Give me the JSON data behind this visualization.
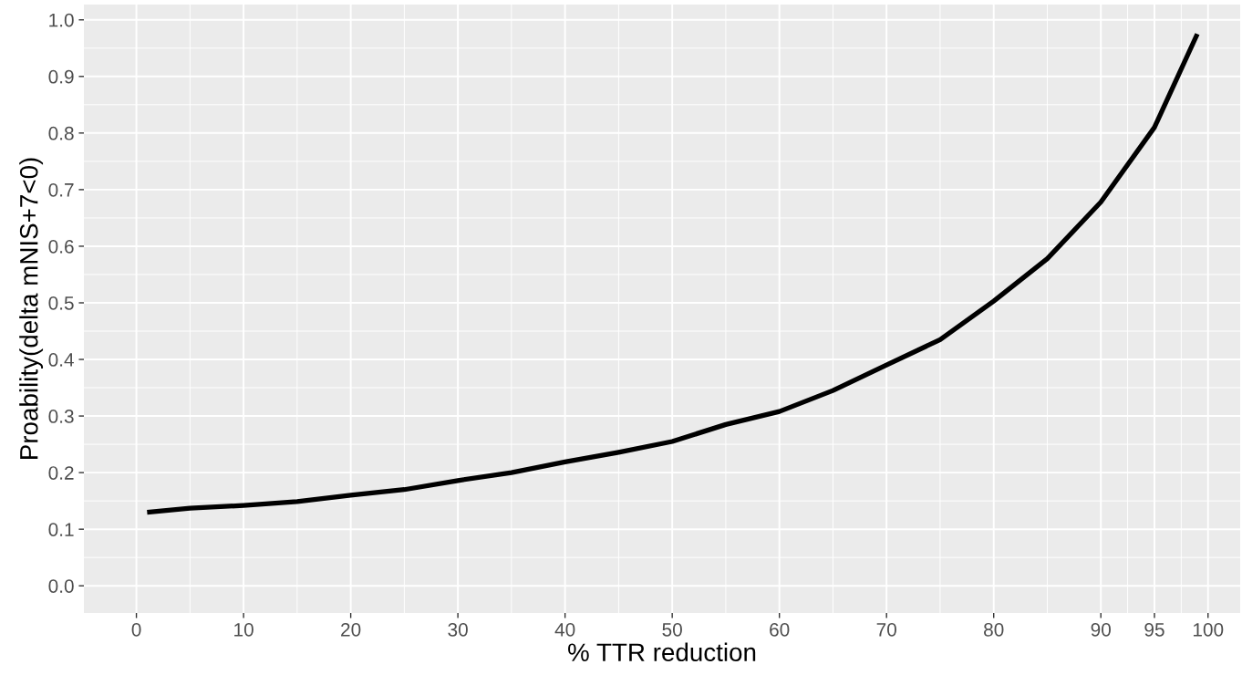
{
  "chart_data": {
    "type": "line",
    "xlabel": "% TTR reduction",
    "ylabel": "Proability(delta mNIS+7<0)",
    "x": [
      1,
      5,
      10,
      15,
      20,
      25,
      30,
      35,
      40,
      45,
      50,
      55,
      60,
      65,
      70,
      75,
      80,
      85,
      90,
      95,
      99
    ],
    "series": [
      {
        "color": "#000000",
        "values": [
          0.13,
          0.137,
          0.142,
          0.149,
          0.16,
          0.17,
          0.186,
          0.2,
          0.219,
          0.236,
          0.255,
          0.285,
          0.308,
          0.345,
          0.39,
          0.435,
          0.503,
          0.578,
          0.678,
          0.81,
          0.975
        ]
      }
    ],
    "xlim": [
      -4.9,
      103
    ],
    "ylim": [
      -0.048,
      1.027
    ],
    "xticks": [
      0,
      10,
      20,
      30,
      40,
      50,
      60,
      70,
      80,
      90,
      95,
      100
    ],
    "yticks": [
      {
        "value": 0,
        "label": "0.0"
      },
      0.1,
      0.2,
      0.3,
      0.4,
      0.5,
      0.6,
      0.7,
      0.8,
      0.9,
      {
        "value": 1,
        "label": "1.0"
      }
    ],
    "grid": true,
    "marker": "none",
    "line_style": "solid"
  }
}
